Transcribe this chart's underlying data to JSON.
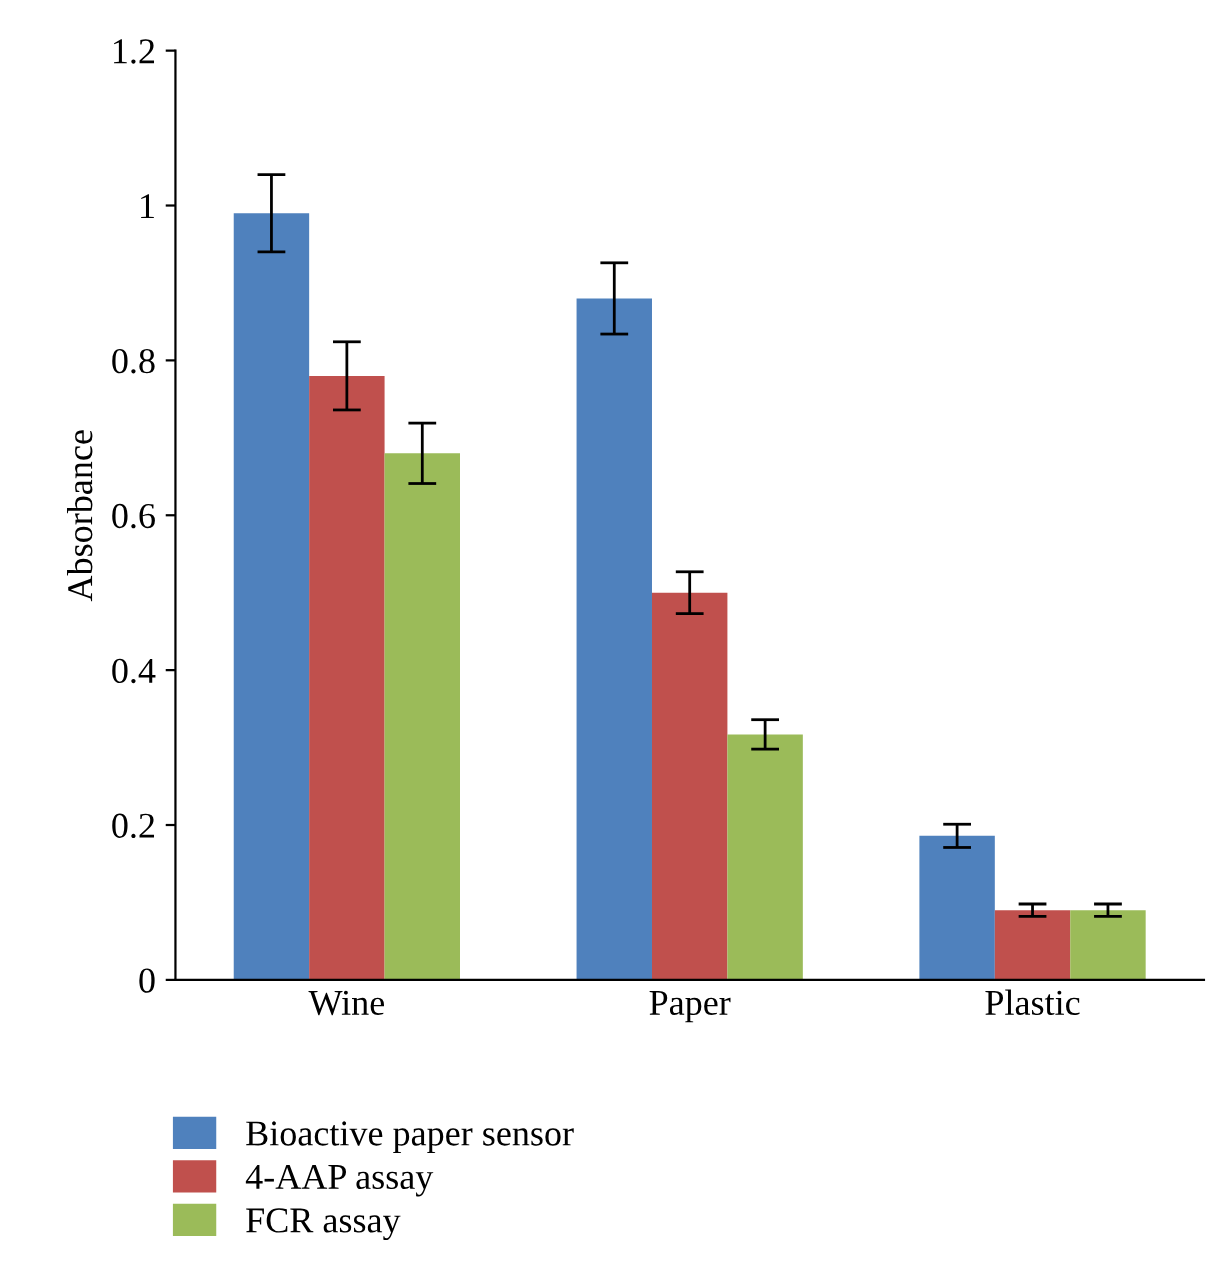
{
  "chart_data": {
    "type": "bar",
    "ylabel": "Absorbance",
    "categories": [
      "Wine",
      "Paper",
      "Plastic"
    ],
    "series": [
      {
        "name": "Bioactive paper sensor",
        "color": "#4f81bd",
        "values": [
          0.99,
          0.88,
          0.186
        ],
        "errors": [
          0.05,
          0.046,
          0.015
        ]
      },
      {
        "name": "4-AAP assay",
        "color": "#c0504d",
        "values": [
          0.78,
          0.5,
          0.09
        ],
        "errors": [
          0.044,
          0.027,
          0.008
        ]
      },
      {
        "name": "FCR assay",
        "color": "#9bbb59",
        "values": [
          0.68,
          0.317,
          0.09
        ],
        "errors": [
          0.039,
          0.019,
          0.008
        ]
      }
    ],
    "ylim": [
      0,
      1.2
    ],
    "yticks": [
      0,
      0.2,
      0.4,
      0.6,
      0.8,
      1,
      1.2
    ],
    "grid": false,
    "legend": "bottom"
  }
}
